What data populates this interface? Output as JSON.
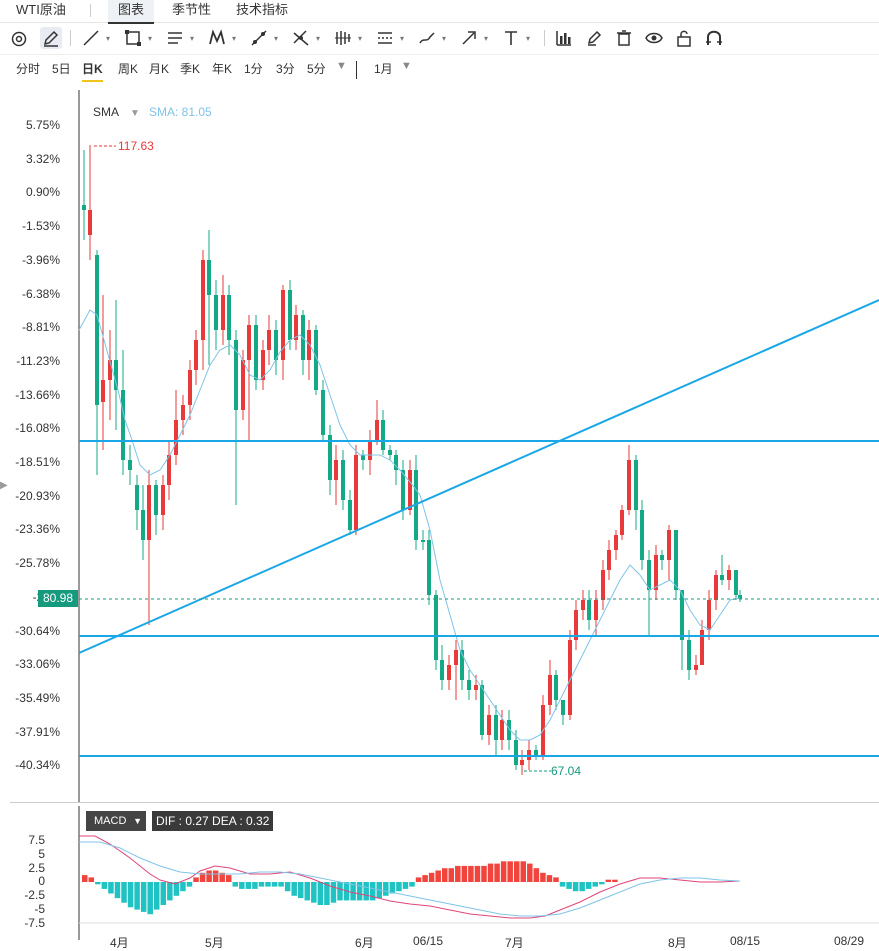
{
  "tabs": {
    "title": "WTI原油",
    "items": [
      "图表",
      "季节性",
      "技术指标"
    ],
    "active_index": 0
  },
  "toolbar": {
    "icons": [
      "crosshair-cursor-icon",
      "pencil-icon",
      "trendline-icon",
      "rectangle-icon",
      "lines-icon",
      "pattern-icon",
      "measure-icon",
      "fib-icon",
      "bars-icon",
      "channel-icon",
      "brush-icon",
      "arrow-icon",
      "text-icon",
      "indicator-icon",
      "marker-icon",
      "trash-icon",
      "eye-icon",
      "lock-icon",
      "magnet-icon"
    ]
  },
  "periods": {
    "items": [
      "分时",
      "5日",
      "日K",
      "周K",
      "月K",
      "季K",
      "年K",
      "1分",
      "3分",
      "5分"
    ],
    "active": "日K",
    "range": "1月"
  },
  "main": {
    "indicator": "SMA",
    "sma_value": "SMA: 81.05",
    "y_labels": [
      "5.75%",
      "3.32%",
      "0.90%",
      "-1.53%",
      "-3.96%",
      "-6.38%",
      "-8.81%",
      "-11.23%",
      "-13.66%",
      "-16.08%",
      "-18.51%",
      "-20.93%",
      "-23.36%",
      "-25.78%",
      "-28.2",
      "-30.64%",
      "-33.06%",
      "-35.49%",
      "-37.91%",
      "-40.34%"
    ],
    "price_tag": "80.98",
    "high_label": "117.63",
    "low_label": "67.04"
  },
  "macd": {
    "label": "MACD",
    "values": "DIF : 0.27   DEA : 0.32",
    "y_labels": [
      "7.5",
      "5",
      "2.5",
      "0",
      "-2.5",
      "-5",
      "-7.5"
    ]
  },
  "x_labels": [
    "4月",
    "5月",
    "6月",
    "06/15",
    "7月",
    "8月",
    "08/15",
    "08/29"
  ],
  "colors": {
    "up": "#e83a3a",
    "down": "#13a886",
    "line": "#1aa7e8",
    "sma": "#7fc4e8",
    "macd_pos": "#f0443c",
    "macd_neg": "#1fc3c3"
  }
}
